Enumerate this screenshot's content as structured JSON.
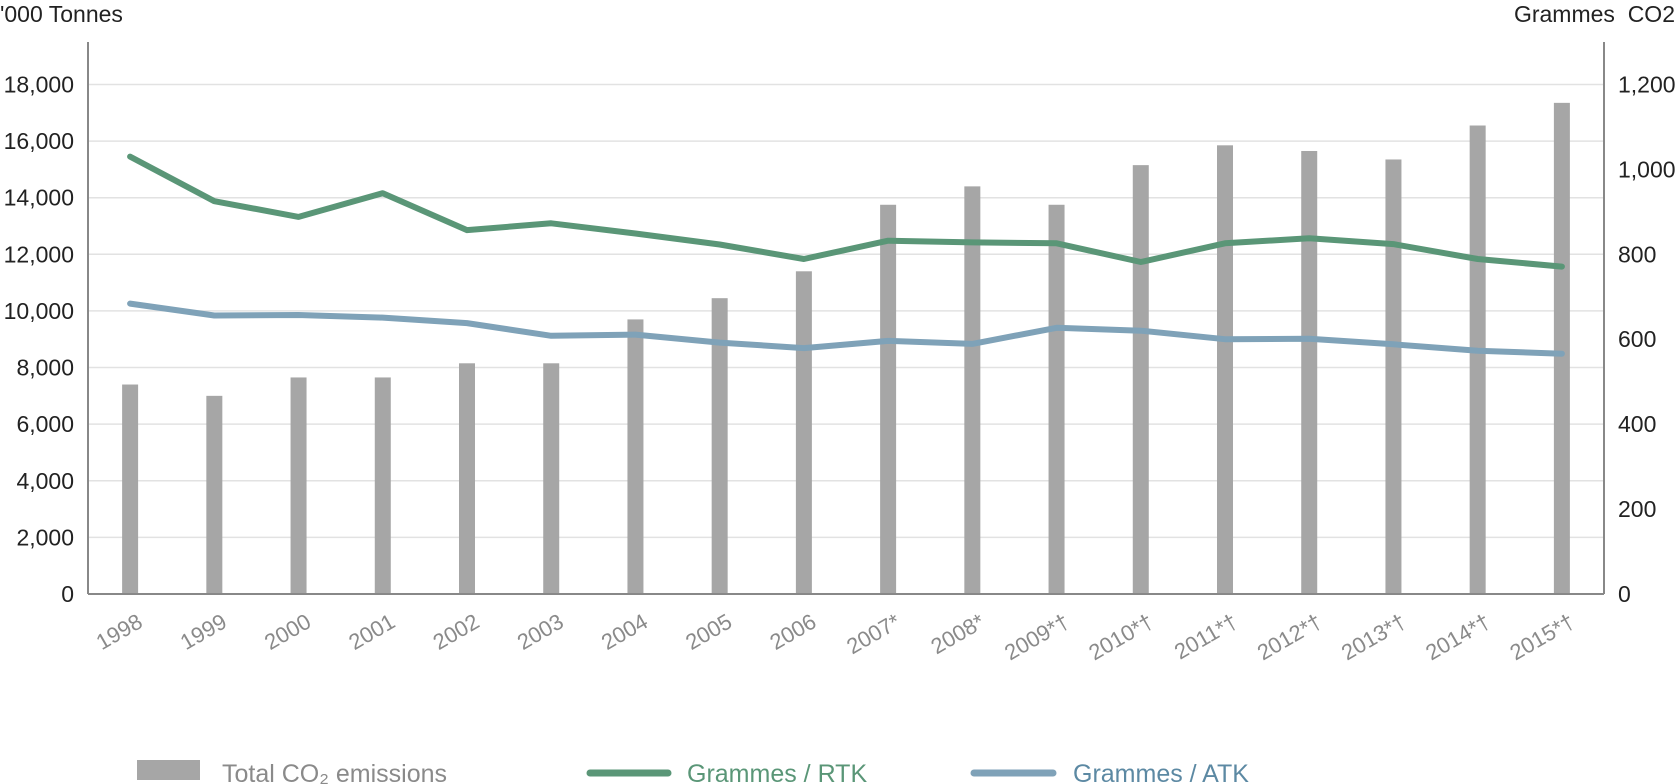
{
  "chart_data": {
    "type": "bar+line",
    "title": "",
    "y_left_label": "'000 Tonnes",
    "y_right_label": "Grammes  CO2",
    "y_left_lim": [
      0,
      19500
    ],
    "y_right_lim": [
      0,
      1300
    ],
    "y_left_ticks": [
      "0",
      "2,000",
      "4,000",
      "6,000",
      "8,000",
      "10,000",
      "12,000",
      "14,000",
      "16,000",
      "18,000"
    ],
    "y_left_tick_values": [
      0,
      2000,
      4000,
      6000,
      8000,
      10000,
      12000,
      14000,
      16000,
      18000
    ],
    "y_right_ticks": [
      "0",
      "200",
      "400",
      "600",
      "800",
      "1,000",
      "1,200"
    ],
    "y_right_tick_values": [
      0,
      200,
      400,
      600,
      800,
      1000,
      1200
    ],
    "grid": true,
    "legend_position": "bottom",
    "categories": [
      "1998",
      "1999",
      "2000",
      "2001",
      "2002",
      "2003",
      "2004",
      "2005",
      "2006",
      "2007*",
      "2008*",
      "2009*†",
      "2010*†",
      "2011*†",
      "2012*†",
      "2013*†",
      "2014*†",
      "2015*†"
    ],
    "bars": {
      "name": "Total CO₂ emissions",
      "axis": "left",
      "color": "#a6a6a6",
      "values": [
        7400,
        7000,
        7650,
        7650,
        8150,
        8150,
        9700,
        10450,
        11400,
        13750,
        14400,
        13750,
        15150,
        15850,
        15650,
        15350,
        16550,
        17350
      ]
    },
    "series": [
      {
        "name": "Grammes / RTK",
        "axis": "right",
        "color": "#5a9677",
        "values": [
          1030,
          925,
          888,
          944,
          857,
          873,
          849,
          823,
          789,
          832,
          828,
          826,
          782,
          826,
          838,
          824,
          789,
          771
        ]
      },
      {
        "name": "Grammes / ATK",
        "axis": "right",
        "color": "#7fa2b8",
        "values": [
          684,
          656,
          657,
          651,
          638,
          608,
          611,
          592,
          579,
          596,
          589,
          627,
          620,
          600,
          601,
          588,
          573,
          566
        ]
      }
    ]
  },
  "legend": {
    "bars_label": "Total CO₂ emissions",
    "rtk_label": "Grammes / RTK",
    "atk_label": "Grammes / ATK",
    "bars_text_color": "#8a8a8a",
    "rtk_text_color": "#5a9677",
    "atk_text_color": "#5c89a3"
  }
}
